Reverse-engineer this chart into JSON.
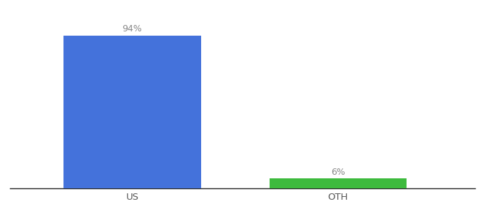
{
  "categories": [
    "US",
    "OTH"
  ],
  "values": [
    94,
    6
  ],
  "bar_colors": [
    "#4472db",
    "#3dba3d"
  ],
  "labels": [
    "94%",
    "6%"
  ],
  "ylim": [
    0,
    100
  ],
  "background_color": "#ffffff",
  "label_fontsize": 9,
  "tick_fontsize": 9.5,
  "bar_width": 0.28,
  "x_positions": [
    0.3,
    0.72
  ],
  "xlim": [
    0.05,
    1.0
  ]
}
